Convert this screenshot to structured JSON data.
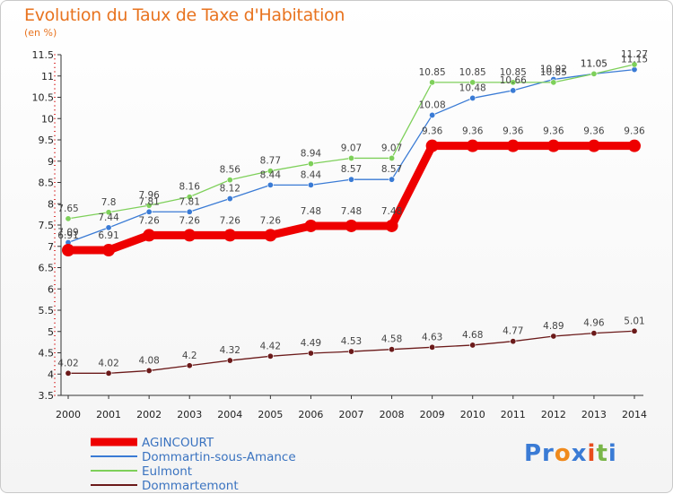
{
  "title": "Evolution du Taux de Taxe d'Habitation",
  "unit_label": "(en %)",
  "logo": {
    "text": "Proxiti",
    "icon": "proxiti-logo"
  },
  "chart_data": {
    "type": "line",
    "title": "Evolution du Taux de Taxe d'Habitation",
    "ylabel": "(en %)",
    "xlabel": "",
    "ylim": [
      3.5,
      11.5
    ],
    "yticks": [
      "3.5",
      "4",
      "4.5",
      "5",
      "5.5",
      "6",
      "6.5",
      "7",
      "7.5",
      "8",
      "8.5",
      "9",
      "9.5",
      "10",
      "10.5",
      "11",
      "11.5"
    ],
    "grid": false,
    "legend_position": "bottom-left",
    "x": [
      "2000",
      "2001",
      "2002",
      "2003",
      "2004",
      "2005",
      "2006",
      "2007",
      "2008",
      "2009",
      "2010",
      "2011",
      "2012",
      "2013",
      "2014"
    ],
    "series": [
      {
        "name": "Dommartemont",
        "color": "#6b1a1a",
        "values": [
          4.02,
          4.02,
          4.08,
          4.2,
          4.32,
          4.42,
          4.49,
          4.53,
          4.58,
          4.63,
          4.68,
          4.77,
          4.89,
          4.96,
          5.01
        ],
        "labels": [
          "4.02",
          "4.02",
          "4.08",
          "4.2",
          "4.32",
          "4.42",
          "4.49",
          "4.53",
          "4.58",
          "4.63",
          "4.68",
          "4.77",
          "4.89",
          "4.96",
          "5.01"
        ]
      },
      {
        "name": "Dommartin-sous-Amance",
        "color": "#3a7bd5",
        "values": [
          7.09,
          7.44,
          7.81,
          7.81,
          8.12,
          8.44,
          8.44,
          8.57,
          8.57,
          10.08,
          10.48,
          10.66,
          10.92,
          11.05,
          11.15
        ],
        "labels": [
          "7.09",
          "7.44",
          "7.81",
          "7.81",
          "8.12",
          "8.44",
          "8.44",
          "8.57",
          "8.57",
          "10.08",
          "10.48",
          "10.66",
          "10.92",
          "11.05",
          "11.15"
        ]
      },
      {
        "name": "Eulmont",
        "color": "#7ed05a",
        "values": [
          7.65,
          7.8,
          7.96,
          8.16,
          8.56,
          8.77,
          8.94,
          9.07,
          9.07,
          10.85,
          10.85,
          10.85,
          10.85,
          11.05,
          11.27
        ],
        "labels": [
          "7.65",
          "7.8",
          "7.96",
          "8.16",
          "8.56",
          "8.77",
          "8.94",
          "9.07",
          "9.07",
          "10.85",
          "10.85",
          "10.85",
          "10.85",
          "11.05",
          "11.27"
        ]
      },
      {
        "name": "AGINCOURT",
        "color": "#ee0000",
        "values": [
          6.91,
          6.91,
          7.26,
          7.26,
          7.26,
          7.26,
          7.48,
          7.48,
          7.48,
          9.36,
          9.36,
          9.36,
          9.36,
          9.36,
          9.36
        ],
        "labels": [
          "6.91",
          "6.91",
          "7.26",
          "7.26",
          "7.26",
          "7.26",
          "7.48",
          "7.48",
          "7.48",
          "9.36",
          "9.36",
          "9.36",
          "9.36",
          "9.36",
          "9.36"
        ]
      }
    ],
    "legend": [
      "AGINCOURT",
      "Dommartin-sous-Amance",
      "Eulmont",
      "Dommartemont"
    ]
  }
}
